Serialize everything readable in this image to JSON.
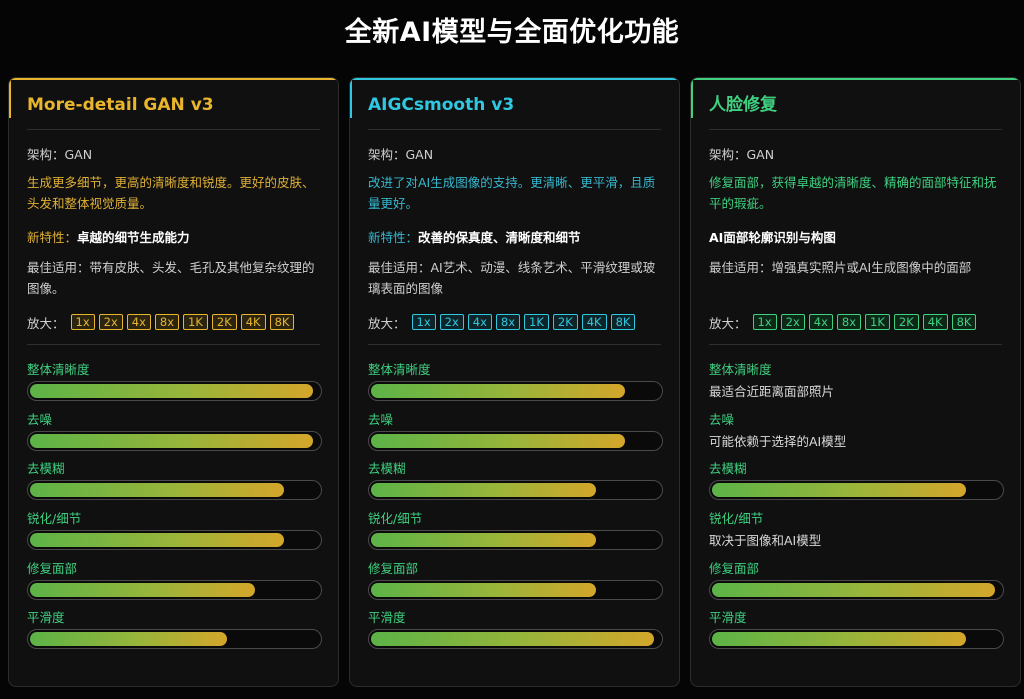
{
  "page": {
    "title": "全新AI模型与全面优化功能"
  },
  "cards": [
    {
      "title": "More-detail GAN v3",
      "arch": "架构：GAN",
      "description": "生成更多细节，更高的清晰度和锐度。更好的皮肤、头发和整体视觉质量。",
      "feature_label": "新特性：",
      "feature_value": "卓越的细节生成能力",
      "best_for": "最佳适用：带有皮肤、头发、毛孔及其他复杂纹理的图像。",
      "scale_label": "放大：",
      "scales": [
        "1x",
        "2x",
        "4x",
        "8x",
        "1K",
        "2K",
        "4K",
        "8K"
      ],
      "accent_color": "#e8b52c",
      "metrics": [
        {
          "label": "整体清晰度",
          "level": 0.98
        },
        {
          "label": "去噪",
          "level": 0.98
        },
        {
          "label": "去模糊",
          "level": 0.88
        },
        {
          "label": "锐化/细节",
          "level": 0.88
        },
        {
          "label": "修复面部",
          "level": 0.78
        },
        {
          "label": "平滑度",
          "level": 0.68
        }
      ]
    },
    {
      "title": "AIGCsmooth v3",
      "arch": "架构：GAN",
      "description": "改进了对AI生成图像的支持。更清晰、更平滑，且质量更好。",
      "feature_label": "新特性：",
      "feature_value": "改善的保真度、清晰度和细节",
      "best_for": "最佳适用：AI艺术、动漫、线条艺术、平滑纹理或玻璃表面的图像",
      "scale_label": "放大：",
      "scales": [
        "1x",
        "2x",
        "4x",
        "8x",
        "1K",
        "2K",
        "4K",
        "8K"
      ],
      "accent_color": "#2fc8e0",
      "metrics": [
        {
          "label": "整体清晰度",
          "level": 0.88
        },
        {
          "label": "去噪",
          "level": 0.88
        },
        {
          "label": "去模糊",
          "level": 0.78
        },
        {
          "label": "锐化/细节",
          "level": 0.78
        },
        {
          "label": "修复面部",
          "level": 0.78
        },
        {
          "label": "平滑度",
          "level": 0.98
        }
      ]
    },
    {
      "title": "人脸修复",
      "arch": "架构：GAN",
      "description": "修复面部，获得卓越的清晰度、精确的面部特征和抚平的瑕疵。",
      "feature_label": "",
      "feature_value": "AI面部轮廓识别与构图",
      "best_for": "最佳适用：增强真实照片或AI生成图像中的面部",
      "scale_label": "放大：",
      "scales": [
        "1x",
        "2x",
        "4x",
        "8x",
        "1K",
        "2K",
        "4K",
        "8K"
      ],
      "accent_color": "#3fd080",
      "metrics": [
        {
          "label": "整体清晰度",
          "text": "最适合近距离面部照片"
        },
        {
          "label": "去噪",
          "text": "可能依赖于选择的AI模型"
        },
        {
          "label": "去模糊",
          "level": 0.88
        },
        {
          "label": "锐化/细节",
          "text": "取决于图像和AI模型"
        },
        {
          "label": "修复面部",
          "level": 0.98
        },
        {
          "label": "平滑度",
          "level": 0.88
        }
      ]
    }
  ]
}
